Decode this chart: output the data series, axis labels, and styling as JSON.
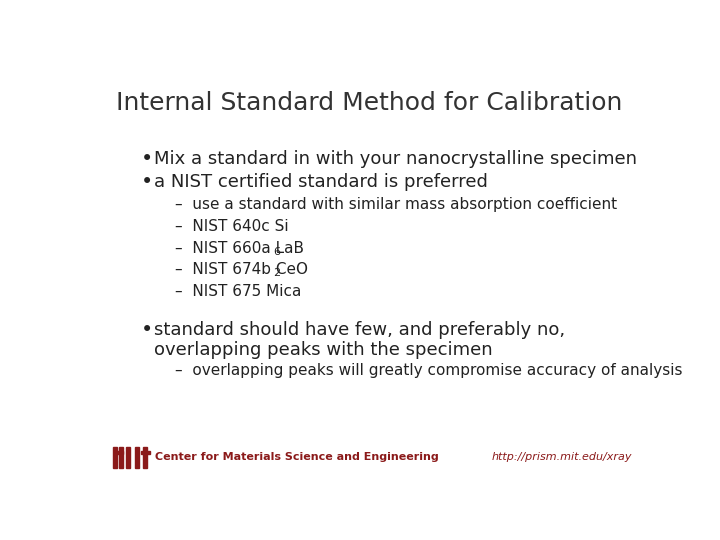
{
  "title": "Internal Standard Method for Calibration",
  "title_fontsize": 18,
  "title_color": "#333333",
  "bg_color": "#ffffff",
  "bullet1": "Mix a standard in with your nanocrystalline specimen",
  "bullet2": "a NIST certified standard is preferred",
  "sub1": "use a standard with similar mass absorption coefficient",
  "sub2": "NIST 640c Si",
  "sub3_base": "NIST 660a LaB",
  "sub3_sub": "6",
  "sub4_base": "NIST 674b CeO",
  "sub4_sub": "2",
  "sub5": "NIST 675 Mica",
  "bullet3_line1": "standard should have few, and preferably no,",
  "bullet3_line2": "overlapping peaks with the specimen",
  "sub6": "overlapping peaks will greatly compromise accuracy of analysis",
  "bullet_fontsize": 13,
  "sub_bullet_fontsize": 11,
  "subscript_fontsize": 8,
  "bullet_color": "#222222",
  "footer_text": "Center for Materials Science and Engineering",
  "footer_color": "#8B1A1A",
  "footer_fontsize": 8,
  "url_text": "http://prism.mit.edu/xray",
  "url_color": "#8B1A1A",
  "url_fontsize": 8,
  "mit_logo_color": "#8B1A1A"
}
